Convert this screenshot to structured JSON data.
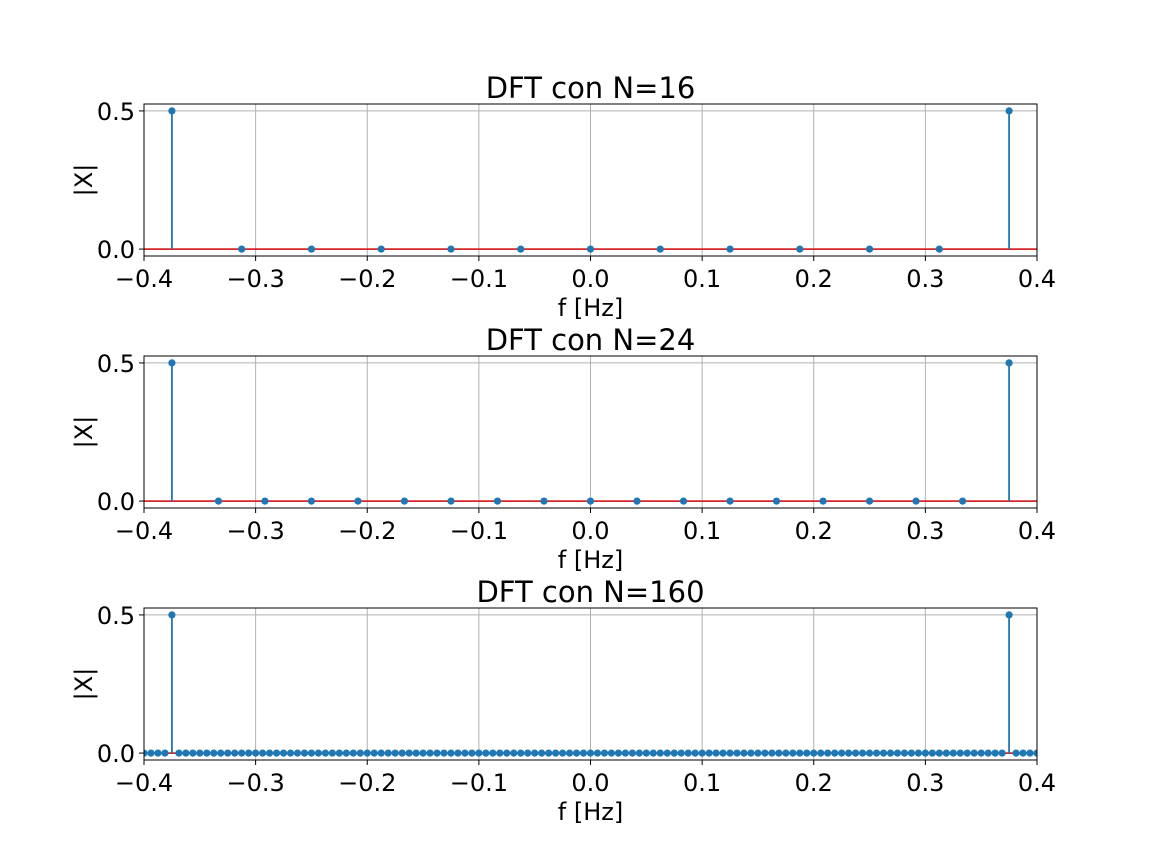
{
  "chart_data": [
    {
      "type": "stem",
      "title": "DFT con N=16",
      "xlabel": "f [Hz]",
      "ylabel": "|X|",
      "xlim": [
        -0.4,
        0.4
      ],
      "ylim": [
        -0.025,
        0.525
      ],
      "xticks": [
        -0.4,
        -0.3,
        -0.2,
        -0.1,
        0.0,
        0.1,
        0.2,
        0.3,
        0.4
      ],
      "xtick_labels": [
        "−0.4",
        "−0.3",
        "−0.2",
        "−0.1",
        "0.0",
        "0.1",
        "0.2",
        "0.3",
        "0.4"
      ],
      "yticks": [
        0.0,
        0.5
      ],
      "ytick_labels": [
        "0.0",
        "0.5"
      ],
      "grid": true,
      "N": 16,
      "peaks": [
        {
          "f": -0.375,
          "value": 0.5
        },
        {
          "f": 0.375,
          "value": 0.5
        }
      ]
    },
    {
      "type": "stem",
      "title": "DFT con N=24",
      "xlabel": "f [Hz]",
      "ylabel": "|X|",
      "xlim": [
        -0.4,
        0.4
      ],
      "ylim": [
        -0.025,
        0.525
      ],
      "xticks": [
        -0.4,
        -0.3,
        -0.2,
        -0.1,
        0.0,
        0.1,
        0.2,
        0.3,
        0.4
      ],
      "xtick_labels": [
        "−0.4",
        "−0.3",
        "−0.2",
        "−0.1",
        "0.0",
        "0.1",
        "0.2",
        "0.3",
        "0.4"
      ],
      "yticks": [
        0.0,
        0.5
      ],
      "ytick_labels": [
        "0.0",
        "0.5"
      ],
      "grid": true,
      "N": 24,
      "peaks": [
        {
          "f": -0.375,
          "value": 0.5
        },
        {
          "f": 0.375,
          "value": 0.5
        }
      ]
    },
    {
      "type": "stem",
      "title": "DFT con N=160",
      "xlabel": "f [Hz]",
      "ylabel": "|X|",
      "xlim": [
        -0.4,
        0.4
      ],
      "ylim": [
        -0.025,
        0.525
      ],
      "xticks": [
        -0.4,
        -0.3,
        -0.2,
        -0.1,
        0.0,
        0.1,
        0.2,
        0.3,
        0.4
      ],
      "xtick_labels": [
        "−0.4",
        "−0.3",
        "−0.2",
        "−0.1",
        "0.0",
        "0.1",
        "0.2",
        "0.3",
        "0.4"
      ],
      "yticks": [
        0.0,
        0.5
      ],
      "ytick_labels": [
        "0.0",
        "0.5"
      ],
      "grid": true,
      "N": 160,
      "peaks": [
        {
          "f": -0.375,
          "value": 0.5
        },
        {
          "f": 0.375,
          "value": 0.5
        }
      ]
    }
  ],
  "colors": {
    "stem": "#1f77b4",
    "baseline": "#d62728",
    "grid": "#b0b0b0",
    "axes": "#000000"
  }
}
